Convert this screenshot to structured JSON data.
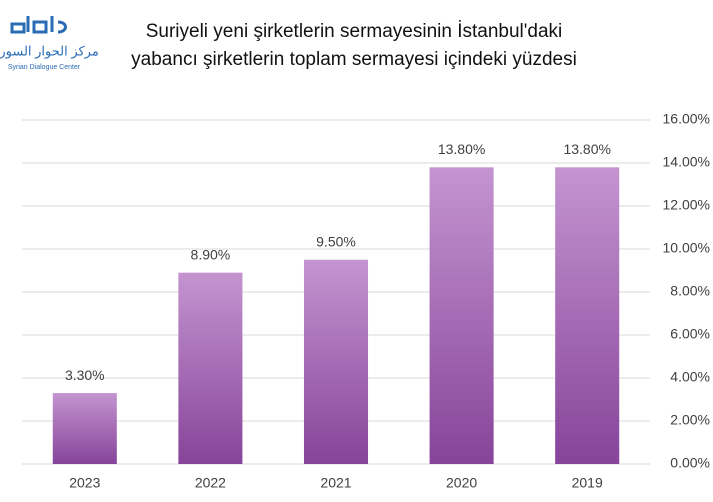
{
  "logo": {
    "arabic": "مركز الحوار السوري",
    "english": "Syrian Dialogue Center"
  },
  "chart_data": {
    "type": "bar",
    "title": [
      "Suriyeli yeni şirketlerin sermayesinin İstanbul'daki",
      "yabancı şirketlerin toplam sermayesi içindeki yüzdesi"
    ],
    "categories": [
      "2023",
      "2022",
      "2021",
      "2020",
      "2019"
    ],
    "values": [
      3.3,
      8.9,
      9.5,
      13.8,
      13.8
    ],
    "value_labels": [
      "3.30%",
      "8.90%",
      "9.50%",
      "13.80%",
      "13.80%"
    ],
    "colors": [
      "#c494d0",
      "#87449a"
    ],
    "ylim": [
      0,
      16
    ],
    "yticks": [
      {
        "value": 0,
        "label": "0.00%"
      },
      {
        "value": 2,
        "label": "2.00%"
      },
      {
        "value": 4,
        "label": "4.00%"
      },
      {
        "value": 6,
        "label": "6.00%"
      },
      {
        "value": 8,
        "label": "8.00%"
      },
      {
        "value": 10,
        "label": "10.00%"
      },
      {
        "value": 12,
        "label": "12.00%"
      },
      {
        "value": 14,
        "label": "14.00%"
      },
      {
        "value": 16,
        "label": "16.00%"
      }
    ],
    "grid": true
  }
}
